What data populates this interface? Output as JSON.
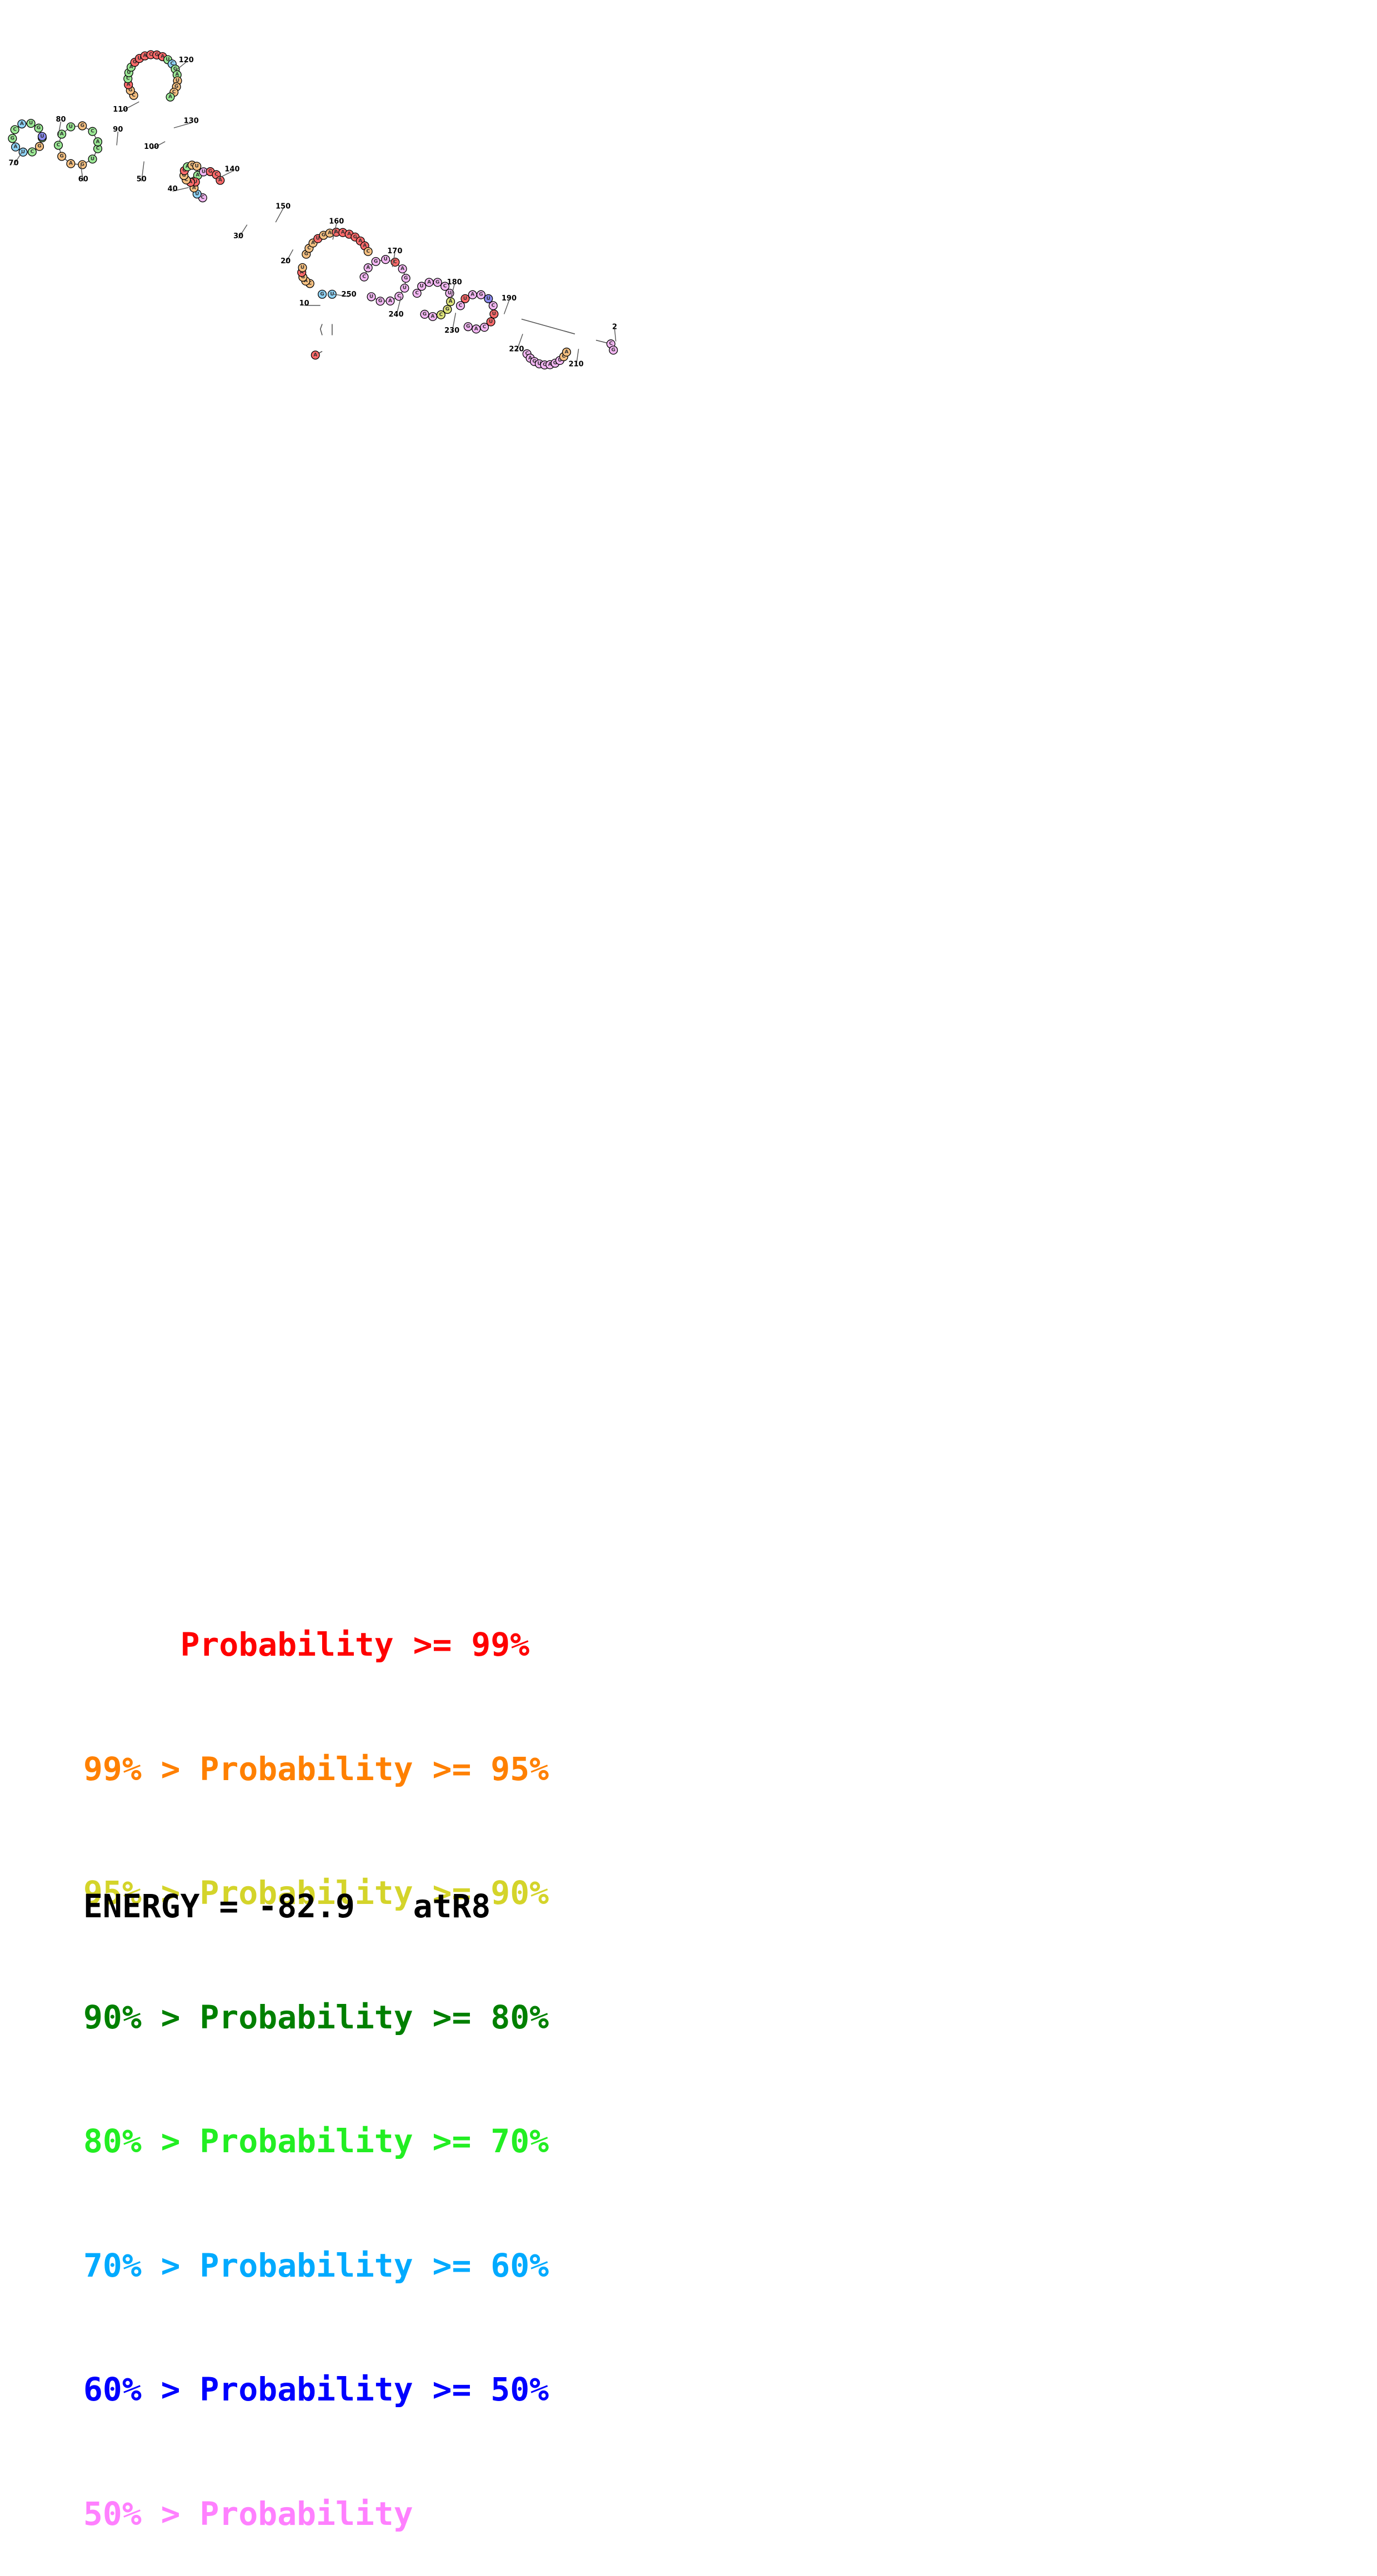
{
  "legend": [
    {
      "text": "     Probability >= 99%",
      "color": "#ff0000"
    },
    {
      "text": "99% > Probability >= 95%",
      "color": "#ff8000"
    },
    {
      "text": "95% > Probability >= 90%",
      "color": "#d4d42a"
    },
    {
      "text": "90% > Probability >= 80%",
      "color": "#008000"
    },
    {
      "text": "80% > Probability >= 70%",
      "color": "#22ee22"
    },
    {
      "text": "70% > Probability >= 60%",
      "color": "#00aaff"
    },
    {
      "text": "60% > Probability >= 50%",
      "color": "#0000ff"
    },
    {
      "text": "50% > Probability",
      "color": "#ff80ff"
    }
  ],
  "footer": {
    "text": "ENERGY = -82.9   atR8"
  },
  "position_labels": [
    "10",
    "20",
    "30",
    "40",
    "50",
    "60",
    "70",
    "80",
    "90",
    "100",
    "110",
    "120",
    "130",
    "140",
    "150",
    "160",
    "170",
    "180",
    "190",
    "210",
    "220",
    "230",
    "240",
    "250",
    "2"
  ],
  "fill_colors": {
    "red": "#ff6a6a",
    "orange": "#f6c081",
    "olive": "#dce27a",
    "green": "#9be895",
    "cyan": "#8fd3f7",
    "blue": "#8b8bf0",
    "pink": "#f2b6f2"
  }
}
